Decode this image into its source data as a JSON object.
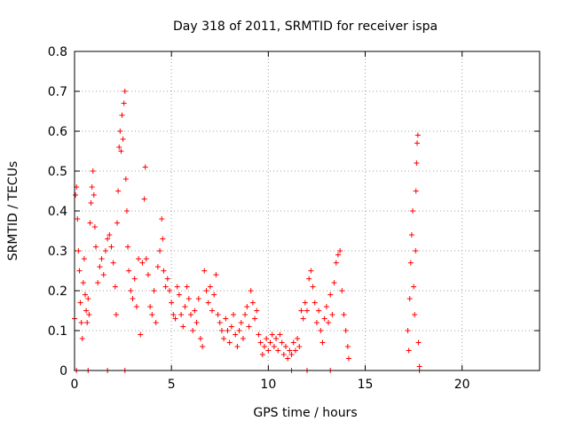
{
  "chart_data": {
    "type": "scatter",
    "title": "Day 318 of 2011, SRMTID for receiver ispa",
    "xlabel": "GPS time / hours",
    "ylabel": "SRMTID / TECUs",
    "xlim": [
      0,
      24
    ],
    "ylim": [
      0,
      0.8
    ],
    "xticks": [
      0,
      5,
      10,
      15,
      20
    ],
    "yticks": [
      0,
      0.1,
      0.2,
      0.3,
      0.4,
      0.5,
      0.6,
      0.7,
      0.8
    ],
    "xtick_labels": [
      "0",
      "5",
      "10",
      "15",
      "20"
    ],
    "ytick_labels": [
      "0",
      "0.1",
      "0.2",
      "0.3",
      "0.4",
      "0.5",
      "0.6",
      "0.7",
      "0.8"
    ],
    "grid": true,
    "marker": "+",
    "color": "#ff0000",
    "series": [
      {
        "name": "SRMTID",
        "points": [
          [
            0.0,
            0.13
          ],
          [
            0.05,
            0.44
          ],
          [
            0.1,
            0.46
          ],
          [
            0.15,
            0.38
          ],
          [
            0.2,
            0.3
          ],
          [
            0.25,
            0.25
          ],
          [
            0.3,
            0.17
          ],
          [
            0.35,
            0.12
          ],
          [
            0.4,
            0.08
          ],
          [
            0.45,
            0.22
          ],
          [
            0.5,
            0.28
          ],
          [
            0.55,
            0.19
          ],
          [
            0.6,
            0.15
          ],
          [
            0.65,
            0.12
          ],
          [
            0.7,
            0.18
          ],
          [
            0.75,
            0.14
          ],
          [
            0.8,
            0.37
          ],
          [
            0.85,
            0.42
          ],
          [
            0.9,
            0.46
          ],
          [
            0.95,
            0.5
          ],
          [
            1.0,
            0.44
          ],
          [
            1.05,
            0.36
          ],
          [
            1.1,
            0.31
          ],
          [
            1.2,
            0.22
          ],
          [
            1.3,
            0.26
          ],
          [
            1.4,
            0.28
          ],
          [
            1.5,
            0.24
          ],
          [
            1.6,
            0.3
          ],
          [
            1.7,
            0.33
          ],
          [
            1.8,
            0.34
          ],
          [
            1.9,
            0.31
          ],
          [
            2.0,
            0.27
          ],
          [
            2.1,
            0.21
          ],
          [
            2.15,
            0.14
          ],
          [
            2.2,
            0.37
          ],
          [
            2.25,
            0.45
          ],
          [
            2.3,
            0.56
          ],
          [
            2.35,
            0.6
          ],
          [
            2.4,
            0.55
          ],
          [
            2.45,
            0.64
          ],
          [
            2.5,
            0.58
          ],
          [
            2.55,
            0.67
          ],
          [
            2.6,
            0.7
          ],
          [
            2.65,
            0.48
          ],
          [
            2.7,
            0.4
          ],
          [
            2.75,
            0.31
          ],
          [
            2.8,
            0.25
          ],
          [
            2.9,
            0.2
          ],
          [
            3.0,
            0.18
          ],
          [
            3.1,
            0.23
          ],
          [
            3.2,
            0.16
          ],
          [
            3.3,
            0.28
          ],
          [
            3.4,
            0.09
          ],
          [
            3.5,
            0.27
          ],
          [
            3.6,
            0.43
          ],
          [
            3.65,
            0.51
          ],
          [
            3.7,
            0.28
          ],
          [
            3.8,
            0.24
          ],
          [
            3.9,
            0.16
          ],
          [
            4.0,
            0.14
          ],
          [
            4.1,
            0.2
          ],
          [
            4.2,
            0.12
          ],
          [
            4.3,
            0.26
          ],
          [
            4.4,
            0.3
          ],
          [
            4.5,
            0.38
          ],
          [
            4.55,
            0.33
          ],
          [
            4.6,
            0.25
          ],
          [
            4.7,
            0.21
          ],
          [
            4.8,
            0.23
          ],
          [
            4.9,
            0.2
          ],
          [
            5.0,
            0.17
          ],
          [
            5.1,
            0.14
          ],
          [
            5.2,
            0.13
          ],
          [
            5.3,
            0.21
          ],
          [
            5.4,
            0.19
          ],
          [
            5.5,
            0.14
          ],
          [
            5.6,
            0.11
          ],
          [
            5.7,
            0.16
          ],
          [
            5.8,
            0.21
          ],
          [
            5.9,
            0.18
          ],
          [
            6.0,
            0.14
          ],
          [
            6.1,
            0.1
          ],
          [
            6.2,
            0.15
          ],
          [
            6.3,
            0.12
          ],
          [
            6.4,
            0.18
          ],
          [
            6.5,
            0.08
          ],
          [
            6.6,
            0.06
          ],
          [
            6.7,
            0.25
          ],
          [
            6.8,
            0.2
          ],
          [
            6.9,
            0.17
          ],
          [
            7.0,
            0.21
          ],
          [
            7.1,
            0.15
          ],
          [
            7.2,
            0.19
          ],
          [
            7.3,
            0.24
          ],
          [
            7.4,
            0.14
          ],
          [
            7.5,
            0.12
          ],
          [
            7.6,
            0.1
          ],
          [
            7.7,
            0.08
          ],
          [
            7.8,
            0.13
          ],
          [
            7.9,
            0.1
          ],
          [
            8.0,
            0.07
          ],
          [
            8.1,
            0.11
          ],
          [
            8.2,
            0.14
          ],
          [
            8.3,
            0.09
          ],
          [
            8.4,
            0.06
          ],
          [
            8.5,
            0.1
          ],
          [
            8.6,
            0.12
          ],
          [
            8.7,
            0.08
          ],
          [
            8.8,
            0.14
          ],
          [
            8.9,
            0.16
          ],
          [
            9.0,
            0.11
          ],
          [
            9.1,
            0.2
          ],
          [
            9.2,
            0.17
          ],
          [
            9.3,
            0.13
          ],
          [
            9.4,
            0.15
          ],
          [
            9.5,
            0.09
          ],
          [
            9.6,
            0.07
          ],
          [
            9.7,
            0.04
          ],
          [
            9.8,
            0.06
          ],
          [
            9.9,
            0.08
          ],
          [
            10.0,
            0.05
          ],
          [
            10.1,
            0.07
          ],
          [
            10.2,
            0.09
          ],
          [
            10.3,
            0.06
          ],
          [
            10.4,
            0.08
          ],
          [
            10.5,
            0.05
          ],
          [
            10.6,
            0.09
          ],
          [
            10.7,
            0.07
          ],
          [
            10.8,
            0.04
          ],
          [
            10.9,
            0.06
          ],
          [
            11.0,
            0.03
          ],
          [
            11.1,
            0.05
          ],
          [
            11.2,
            0.04
          ],
          [
            11.3,
            0.07
          ],
          [
            11.4,
            0.05
          ],
          [
            11.5,
            0.08
          ],
          [
            11.6,
            0.06
          ],
          [
            11.7,
            0.15
          ],
          [
            11.8,
            0.13
          ],
          [
            11.9,
            0.17
          ],
          [
            12.0,
            0.15
          ],
          [
            12.1,
            0.23
          ],
          [
            12.2,
            0.25
          ],
          [
            12.3,
            0.21
          ],
          [
            12.4,
            0.17
          ],
          [
            12.5,
            0.12
          ],
          [
            12.6,
            0.15
          ],
          [
            12.7,
            0.1
          ],
          [
            12.8,
            0.07
          ],
          [
            12.9,
            0.13
          ],
          [
            13.0,
            0.16
          ],
          [
            13.1,
            0.12
          ],
          [
            13.2,
            0.19
          ],
          [
            13.3,
            0.14
          ],
          [
            13.4,
            0.22
          ],
          [
            13.5,
            0.27
          ],
          [
            13.6,
            0.29
          ],
          [
            13.7,
            0.3
          ],
          [
            13.8,
            0.2
          ],
          [
            13.9,
            0.14
          ],
          [
            14.0,
            0.1
          ],
          [
            14.1,
            0.06
          ],
          [
            14.15,
            0.03
          ],
          [
            17.2,
            0.1
          ],
          [
            17.25,
            0.05
          ],
          [
            17.3,
            0.18
          ],
          [
            17.35,
            0.27
          ],
          [
            17.4,
            0.34
          ],
          [
            17.45,
            0.4
          ],
          [
            17.5,
            0.21
          ],
          [
            17.55,
            0.14
          ],
          [
            17.6,
            0.3
          ],
          [
            17.62,
            0.45
          ],
          [
            17.65,
            0.52
          ],
          [
            17.68,
            0.57
          ],
          [
            17.72,
            0.59
          ],
          [
            17.75,
            0.07
          ],
          [
            17.8,
            0.01
          ],
          [
            0.1,
            0.0
          ],
          [
            0.7,
            0.0
          ],
          [
            1.7,
            0.0
          ],
          [
            2.6,
            0.0
          ],
          [
            11.2,
            0.0
          ],
          [
            12.0,
            0.0
          ],
          [
            13.2,
            0.0
          ],
          [
            17.8,
            0.0
          ]
        ]
      }
    ]
  }
}
